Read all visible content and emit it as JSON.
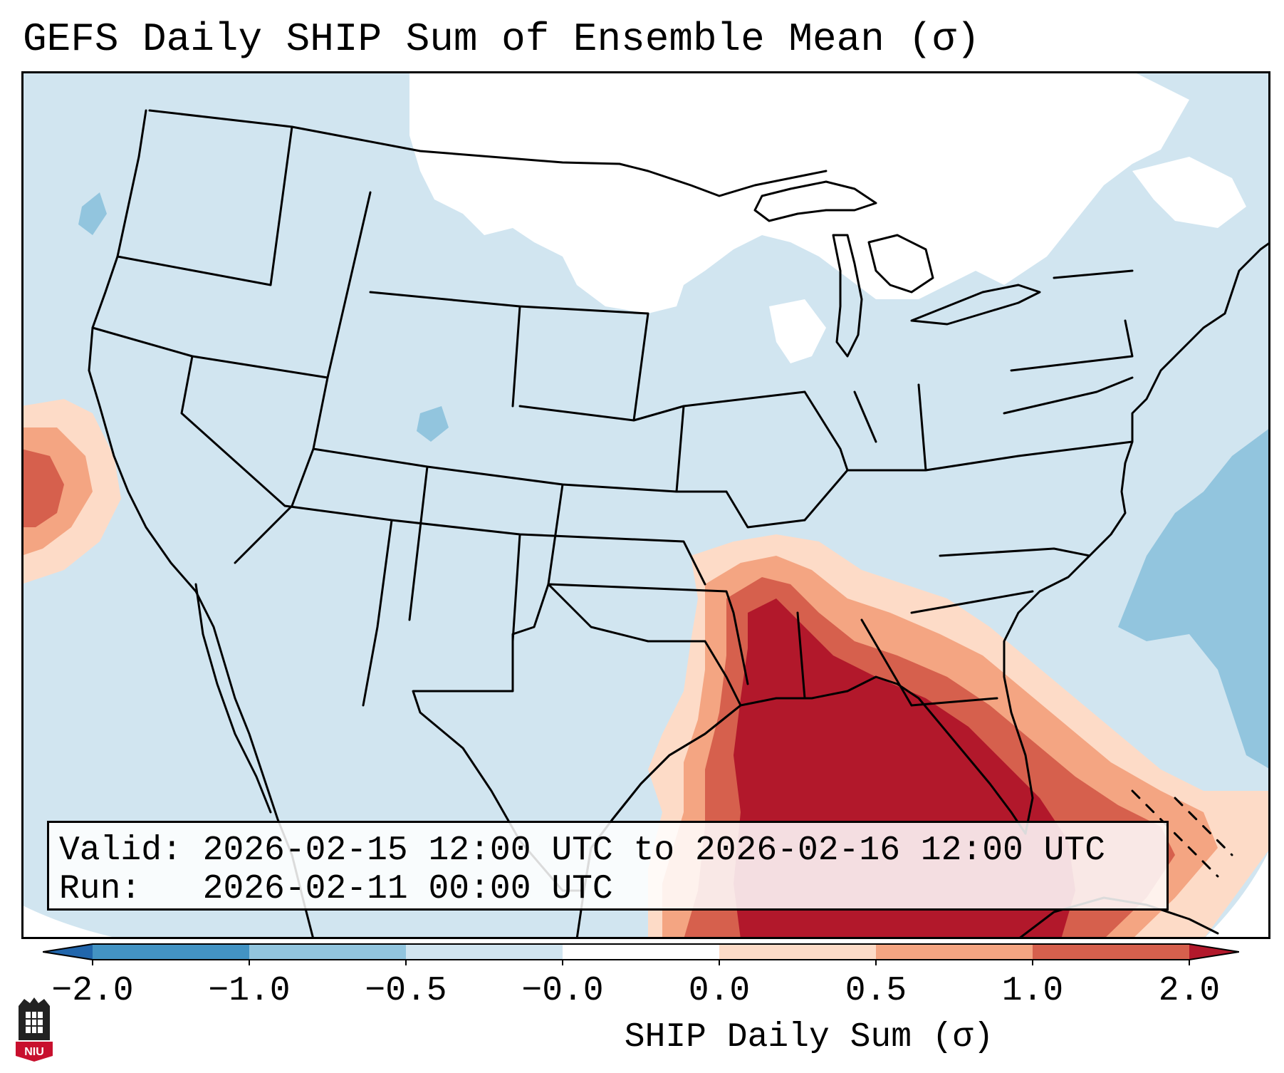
{
  "figure": {
    "title": "GEFS Daily SHIP Sum of Ensemble Mean (σ)"
  },
  "info_box": {
    "valid_line": "Valid: 2026-02-15 12:00 UTC to 2026-02-16 12:00 UTC",
    "run_line": "Run:   2026-02-11 00:00 UTC"
  },
  "colorbar": {
    "label": "SHIP Daily Sum (σ)",
    "extend": "both",
    "bins": [
      {
        "from": -2.0,
        "to": -1.0,
        "color": "#4393c3"
      },
      {
        "from": -1.0,
        "to": -0.5,
        "color": "#92c5de"
      },
      {
        "from": -0.5,
        "to": -0.0,
        "color": "#d1e5f0"
      },
      {
        "from": -0.0,
        "to": 0.0,
        "color": "#ffffff"
      },
      {
        "from": 0.0,
        "to": 0.5,
        "color": "#fddbc7"
      },
      {
        "from": 0.5,
        "to": 1.0,
        "color": "#f4a582"
      },
      {
        "from": 1.0,
        "to": 2.0,
        "color": "#d6604d"
      }
    ],
    "under_color": "#2166ac",
    "over_color": "#b2182b",
    "tick_labels": [
      "−2.0",
      "−1.0",
      "−0.5",
      "−0.0",
      "0.0",
      "0.5",
      "1.0",
      "2.0"
    ]
  },
  "map": {
    "projection": "Lambert Conformal (CONUS)",
    "background_color": "#d1e5f0",
    "region_colors": {
      "neutral": "#ffffff",
      "light_neg": "#92c5de",
      "pos_low": "#fddbc7",
      "pos_mid": "#f4a582",
      "pos_high": "#d6604d",
      "pos_max": "#b2182b"
    }
  },
  "logo": {
    "text": "NIU",
    "colors": {
      "shield": "#c8102e",
      "tower": "#222222"
    }
  }
}
